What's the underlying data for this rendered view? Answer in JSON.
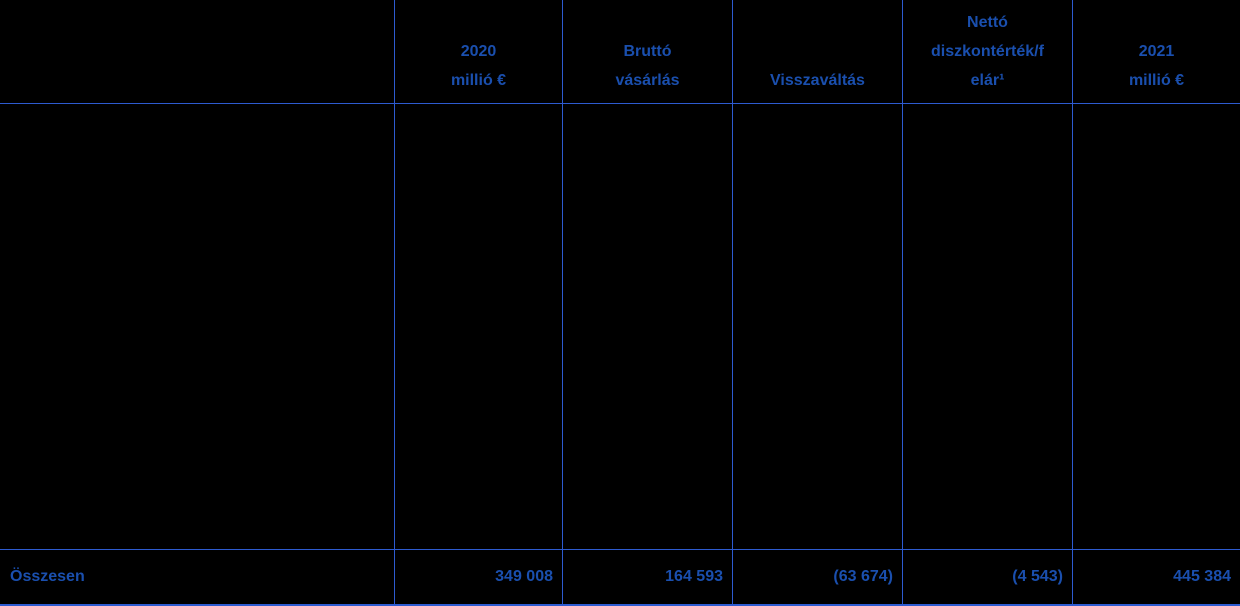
{
  "theme": {
    "background_color": "#000000",
    "text_color": "#1a4fae",
    "line_color": "#2d5bd0"
  },
  "table": {
    "columns": [
      {
        "header": ""
      },
      {
        "header": "2020\nmillió €"
      },
      {
        "header": "Bruttó\nvásárlás"
      },
      {
        "header": "Visszaváltás"
      },
      {
        "header": "Nettó\ndiszkontérték/f\nelár¹"
      },
      {
        "header": "2021\nmillió €"
      }
    ],
    "total_row": {
      "label": "Összesen",
      "values": [
        "349 008",
        "164 593",
        "(63 674)",
        "(4 543)",
        "445 384"
      ]
    }
  }
}
